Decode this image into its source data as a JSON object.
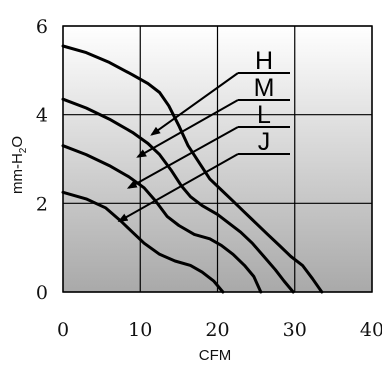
{
  "chart_data": {
    "type": "line",
    "xlabel": "CFM",
    "ylabel": {
      "text": "mm-H",
      "subscript": "2",
      "suffix": "O"
    },
    "xlim": [
      0,
      40
    ],
    "ylim": [
      0,
      6
    ],
    "xticks": [
      0,
      10,
      20,
      30,
      40
    ],
    "yticks": [
      0,
      2,
      4,
      6
    ],
    "grid": true,
    "background": {
      "top_color": "#ffffff",
      "bottom_color": "#a9a9a9"
    },
    "line_color": "#000000",
    "series": [
      {
        "name": "H",
        "points": [
          [
            0,
            5.55
          ],
          [
            3,
            5.4
          ],
          [
            6,
            5.18
          ],
          [
            9,
            4.9
          ],
          [
            11,
            4.7
          ],
          [
            12.5,
            4.5
          ],
          [
            13.7,
            4.2
          ],
          [
            15,
            3.75
          ],
          [
            16.2,
            3.3
          ],
          [
            17.5,
            2.95
          ],
          [
            19,
            2.55
          ],
          [
            20.5,
            2.3
          ],
          [
            22,
            2.05
          ],
          [
            23.5,
            1.8
          ],
          [
            25,
            1.55
          ],
          [
            26.5,
            1.3
          ],
          [
            28,
            1.05
          ],
          [
            29.5,
            0.8
          ],
          [
            31,
            0.6
          ],
          [
            32.3,
            0.3
          ],
          [
            33.5,
            0
          ]
        ],
        "label_at": [
          11.5,
          3.55
        ]
      },
      {
        "name": "M",
        "points": [
          [
            0,
            4.35
          ],
          [
            3,
            4.15
          ],
          [
            6,
            3.9
          ],
          [
            9,
            3.6
          ],
          [
            11,
            3.35
          ],
          [
            12.5,
            3.1
          ],
          [
            14,
            2.75
          ],
          [
            15.3,
            2.4
          ],
          [
            16.5,
            2.15
          ],
          [
            18,
            1.95
          ],
          [
            20,
            1.75
          ],
          [
            21.5,
            1.55
          ],
          [
            23,
            1.35
          ],
          [
            24.5,
            1.1
          ],
          [
            26,
            0.8
          ],
          [
            27.5,
            0.5
          ],
          [
            28.6,
            0.25
          ],
          [
            29.8,
            0
          ]
        ],
        "label_at": [
          9.7,
          3.05
        ]
      },
      {
        "name": "L",
        "points": [
          [
            0,
            3.3
          ],
          [
            3,
            3.1
          ],
          [
            6,
            2.85
          ],
          [
            8.5,
            2.6
          ],
          [
            10.5,
            2.35
          ],
          [
            12,
            2.05
          ],
          [
            13.5,
            1.7
          ],
          [
            15,
            1.5
          ],
          [
            17,
            1.3
          ],
          [
            19,
            1.2
          ],
          [
            20.5,
            1.05
          ],
          [
            22,
            0.85
          ],
          [
            23.5,
            0.6
          ],
          [
            24.7,
            0.35
          ],
          [
            25.6,
            0
          ]
        ],
        "label_at": [
          8.5,
          2.35
        ]
      },
      {
        "name": "J",
        "points": [
          [
            0,
            2.25
          ],
          [
            3,
            2.1
          ],
          [
            5.5,
            1.9
          ],
          [
            7.5,
            1.6
          ],
          [
            9,
            1.35
          ],
          [
            10.5,
            1.1
          ],
          [
            12.5,
            0.85
          ],
          [
            14.5,
            0.7
          ],
          [
            16.5,
            0.6
          ],
          [
            18,
            0.45
          ],
          [
            19.5,
            0.25
          ],
          [
            20.7,
            0
          ]
        ],
        "label_at": [
          7.3,
          1.6
        ]
      }
    ]
  }
}
